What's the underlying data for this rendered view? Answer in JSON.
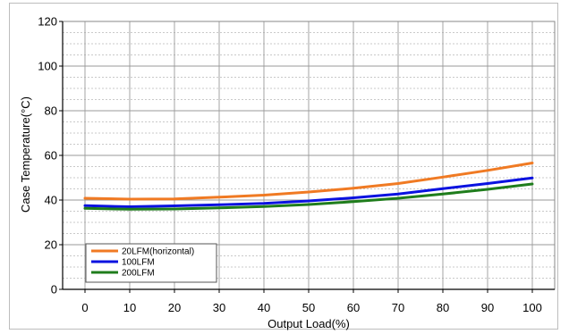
{
  "chart_data": {
    "type": "line",
    "xlabel": "Output Load(%)",
    "ylabel": "Case Temperature(°C)",
    "x": [
      0,
      10,
      20,
      30,
      40,
      50,
      60,
      70,
      80,
      90,
      100
    ],
    "x_ticks": [
      "0",
      "10",
      "20",
      "30",
      "40",
      "50",
      "60",
      "70",
      "80",
      "90",
      "100"
    ],
    "y_ticks": [
      "0",
      "20",
      "40",
      "60",
      "80",
      "100",
      "120"
    ],
    "xlim": [
      -5,
      105
    ],
    "ylim": [
      0,
      120
    ],
    "grid": true,
    "legend_position": "bottom-left",
    "series": [
      {
        "name": "20LFM(horizontal)",
        "color": "#f07a23",
        "values": [
          40.8,
          40.4,
          40.5,
          41.3,
          42.2,
          43.6,
          45.3,
          47.4,
          50.3,
          53.3,
          56.6
        ]
      },
      {
        "name": "100LFM",
        "color": "#0a12e0",
        "values": [
          37.5,
          37.0,
          37.4,
          37.9,
          38.5,
          39.6,
          41.0,
          42.7,
          45.1,
          47.4,
          49.9
        ]
      },
      {
        "name": "200LFM",
        "color": "#1f7d1c",
        "values": [
          36.3,
          35.9,
          36.0,
          36.5,
          37.1,
          38.0,
          39.3,
          40.8,
          42.7,
          44.8,
          47.2
        ]
      }
    ]
  }
}
